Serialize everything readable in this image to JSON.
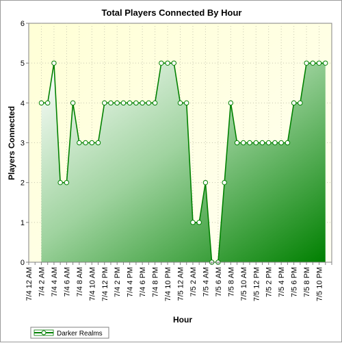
{
  "chart_data": {
    "type": "area",
    "title": "Total Players Connected By Hour",
    "xlabel": "Hour",
    "ylabel": "Players Connected",
    "ylim": [
      0,
      6
    ],
    "yticks": [
      0,
      1,
      2,
      3,
      4,
      5,
      6
    ],
    "grid": true,
    "legend": "bottom-left",
    "x_tick_labels": [
      "7/4 12 AM",
      "7/4 2 AM",
      "7/4 4 AM",
      "7/4 6 AM",
      "7/4 8 AM",
      "7/4 10 AM",
      "7/4 12 PM",
      "7/4 2 PM",
      "7/4 4 PM",
      "7/4 6 PM",
      "7/4 8 PM",
      "7/4 10 PM",
      "7/5 12 AM",
      "7/5 2 AM",
      "7/5 4 AM",
      "7/5 6 AM",
      "7/5 8 AM",
      "7/5 10 AM",
      "7/5 12 PM",
      "7/5 2 PM",
      "7/5 4 PM",
      "7/5 6 PM",
      "7/5 8 PM",
      "7/5 10 PM"
    ],
    "x": [
      "7/4 2 AM",
      "7/4 3 AM",
      "7/4 4 AM",
      "7/4 5 AM",
      "7/4 6 AM",
      "7/4 7 AM",
      "7/4 8 AM",
      "7/4 9 AM",
      "7/4 10 AM",
      "7/4 11 AM",
      "7/4 12 PM",
      "7/4 1 PM",
      "7/4 2 PM",
      "7/4 3 PM",
      "7/4 4 PM",
      "7/4 5 PM",
      "7/4 6 PM",
      "7/4 7 PM",
      "7/4 8 PM",
      "7/4 9 PM",
      "7/4 10 PM",
      "7/4 11 PM",
      "7/5 12 AM",
      "7/5 1 AM",
      "7/5 2 AM",
      "7/5 3 AM",
      "7/5 4 AM",
      "7/5 5 AM",
      "7/5 6 AM",
      "7/5 7 AM",
      "7/5 8 AM",
      "7/5 9 AM",
      "7/5 10 AM",
      "7/5 11 AM",
      "7/5 12 PM",
      "7/5 1 PM",
      "7/5 2 PM",
      "7/5 3 PM",
      "7/5 4 PM",
      "7/5 5 PM",
      "7/5 6 PM",
      "7/5 7 PM",
      "7/5 8 PM",
      "7/5 9 PM",
      "7/5 10 PM",
      "7/5 11 PM"
    ],
    "series": [
      {
        "name": "Darker Realms",
        "values": [
          4,
          4,
          5,
          2,
          2,
          4,
          3,
          3,
          3,
          3,
          4,
          4,
          4,
          4,
          4,
          4,
          4,
          4,
          4,
          5,
          5,
          5,
          4,
          4,
          1,
          1,
          2,
          0,
          0,
          2,
          4,
          3,
          3,
          3,
          3,
          3,
          3,
          3,
          3,
          3,
          4,
          4,
          5,
          5,
          5,
          5
        ],
        "color": "#008000"
      }
    ]
  }
}
